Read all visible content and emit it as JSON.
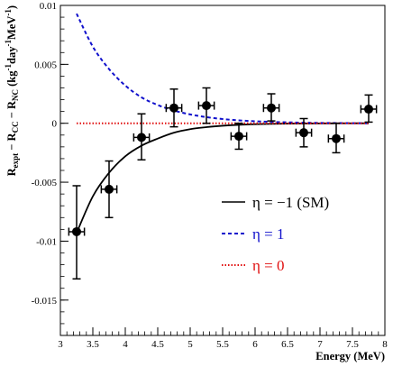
{
  "chart_data": {
    "type": "scatter",
    "xlabel": "Energy (MeV)",
    "ylabel_parts": [
      {
        "t": "R",
        "sub": "expt"
      },
      {
        "t": " − R",
        "sub": "CC"
      },
      {
        "t": " − R",
        "sub": "NC"
      },
      {
        "t": " (kg",
        "sup": "-1"
      },
      {
        "t": "day",
        "sup": "-1"
      },
      {
        "t": "MeV",
        "sup": "-1"
      },
      {
        "t": ")"
      }
    ],
    "xlim": [
      3,
      8
    ],
    "ylim": [
      -0.018,
      0.01
    ],
    "x_ticks": [
      3,
      3.5,
      4,
      4.5,
      5,
      5.5,
      6,
      6.5,
      7,
      7.5,
      8
    ],
    "x_tick_labels": [
      "3",
      "3.5",
      "4",
      "4.5",
      "5",
      "5.5",
      "6",
      "6.5",
      "7",
      "7.5",
      "8"
    ],
    "y_ticks": [
      0.01,
      0.005,
      0,
      -0.005,
      -0.01,
      -0.015
    ],
    "y_tick_labels": [
      "0.01",
      "0.005",
      "0",
      "-0.005",
      "-0.01",
      "-0.015"
    ],
    "grid": false,
    "legend_position": "bottom-right",
    "data_points": [
      {
        "x": 3.25,
        "y": -0.0092,
        "yerr_low": 0.004,
        "yerr_high": 0.0039,
        "xerr": 0.12
      },
      {
        "x": 3.75,
        "y": -0.0056,
        "yerr_low": 0.0024,
        "yerr_high": 0.0024,
        "xerr": 0.12
      },
      {
        "x": 4.25,
        "y": -0.0012,
        "yerr_low": 0.0019,
        "yerr_high": 0.002,
        "xerr": 0.12
      },
      {
        "x": 4.75,
        "y": 0.0013,
        "yerr_low": 0.0016,
        "yerr_high": 0.0016,
        "xerr": 0.12
      },
      {
        "x": 5.25,
        "y": 0.0015,
        "yerr_low": 0.0015,
        "yerr_high": 0.0015,
        "xerr": 0.12
      },
      {
        "x": 5.75,
        "y": -0.0011,
        "yerr_low": 0.0011,
        "yerr_high": 0.0011,
        "xerr": 0.12
      },
      {
        "x": 6.25,
        "y": 0.0013,
        "yerr_low": 0.0011,
        "yerr_high": 0.0012,
        "xerr": 0.12
      },
      {
        "x": 6.75,
        "y": -0.0008,
        "yerr_low": 0.0012,
        "yerr_high": 0.0012,
        "xerr": 0.12
      },
      {
        "x": 7.25,
        "y": -0.0013,
        "yerr_low": 0.0012,
        "yerr_high": 0.0013,
        "xerr": 0.12
      },
      {
        "x": 7.75,
        "y": 0.0012,
        "yerr_low": 0.0011,
        "yerr_high": 0.0012,
        "xerr": 0.12
      }
    ],
    "curves": [
      {
        "name": "η = −1 (SM)",
        "color": "#000000",
        "style": "solid",
        "x": [
          3.25,
          3.5,
          3.75,
          4.0,
          4.25,
          4.5,
          4.75,
          5.0,
          5.25,
          5.5,
          5.75,
          6.0,
          6.25,
          6.5,
          6.75,
          7.0,
          7.25,
          7.5,
          7.75
        ],
        "y": [
          -0.0093,
          -0.0062,
          -0.0042,
          -0.0028,
          -0.0019,
          -0.0013,
          -0.0008,
          -0.0005,
          -0.00033,
          -0.00021,
          -0.00013,
          -8e-05,
          -5e-05,
          -3e-05,
          -2e-05,
          -1e-05,
          -5e-06,
          0.0,
          0.0
        ]
      },
      {
        "name": "η = 1",
        "color": "#1010cc",
        "style": "dashed",
        "x": [
          3.25,
          3.5,
          3.75,
          4.0,
          4.25,
          4.5,
          4.75,
          5.0,
          5.25,
          5.5,
          5.75,
          6.0,
          6.25,
          6.5,
          6.75,
          7.0,
          7.25,
          7.5,
          7.75
        ],
        "y": [
          0.0093,
          0.0065,
          0.0046,
          0.0032,
          0.0022,
          0.00155,
          0.00108,
          0.00075,
          0.00052,
          0.00036,
          0.00025,
          0.00017,
          0.00012,
          8e-05,
          5e-05,
          3e-05,
          2e-05,
          1e-05,
          0.0
        ]
      },
      {
        "name": "η = 0",
        "color": "#e01010",
        "style": "dotted",
        "x": [
          3.25,
          7.75
        ],
        "y": [
          0.0,
          0.0
        ]
      }
    ],
    "legend": [
      {
        "sample": "solid",
        "color": "#000000",
        "label": "η = −1 (SM)"
      },
      {
        "sample": "dashed",
        "color": "#1010cc",
        "label": "η = 1"
      },
      {
        "sample": "dotted",
        "color": "#e01010",
        "label": "η = 0"
      }
    ]
  }
}
